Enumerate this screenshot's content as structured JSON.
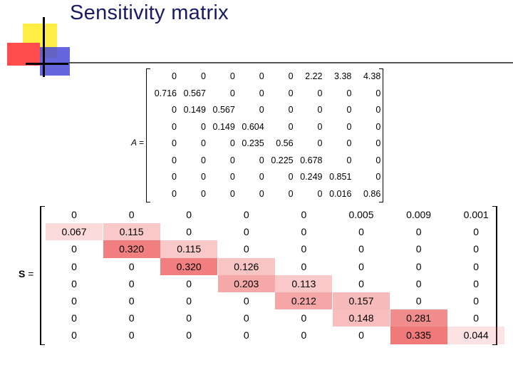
{
  "slide": {
    "title": "Sensitivity matrix"
  },
  "matrix_a": {
    "label": "A =",
    "rows": [
      [
        "0",
        "0",
        "0",
        "0",
        "0",
        "2.22",
        "3.38",
        "4.38"
      ],
      [
        "0.716",
        "0.567",
        "0",
        "0",
        "0",
        "0",
        "0",
        "0"
      ],
      [
        "0",
        "0.149",
        "0.567",
        "0",
        "0",
        "0",
        "0",
        "0"
      ],
      [
        "0",
        "0",
        "0.149",
        "0.604",
        "0",
        "0",
        "0",
        "0"
      ],
      [
        "0",
        "0",
        "0",
        "0.235",
        "0.56",
        "0",
        "0",
        "0"
      ],
      [
        "0",
        "0",
        "0",
        "0",
        "0.225",
        "0.678",
        "0",
        "0"
      ],
      [
        "0",
        "0",
        "0",
        "0",
        "0",
        "0.249",
        "0.851",
        "0"
      ],
      [
        "0",
        "0",
        "0",
        "0",
        "0",
        "0",
        "0.016",
        "0.86"
      ]
    ]
  },
  "matrix_s": {
    "label_bold": "S",
    "label_eq": " =",
    "heat_color": "#f07a7a",
    "rows": [
      [
        "0",
        "0",
        "0",
        "0",
        "0",
        "0.005",
        "0.009",
        "0.001"
      ],
      [
        "0.067",
        "0.115",
        "0",
        "0",
        "0",
        "0",
        "0",
        "0"
      ],
      [
        "0",
        "0.320",
        "0.115",
        "0",
        "0",
        "0",
        "0",
        "0"
      ],
      [
        "0",
        "0",
        "0.320",
        "0.126",
        "0",
        "0",
        "0",
        "0"
      ],
      [
        "0",
        "0",
        "0",
        "0.203",
        "0.113",
        "0",
        "0",
        "0"
      ],
      [
        "0",
        "0",
        "0",
        "0",
        "0.212",
        "0.157",
        "0",
        "0"
      ],
      [
        "0",
        "0",
        "0",
        "0",
        "0",
        "0.148",
        "0.281",
        "0"
      ],
      [
        "0",
        "0",
        "0",
        "0",
        "0",
        "0",
        "0.335",
        "0.044"
      ]
    ]
  }
}
